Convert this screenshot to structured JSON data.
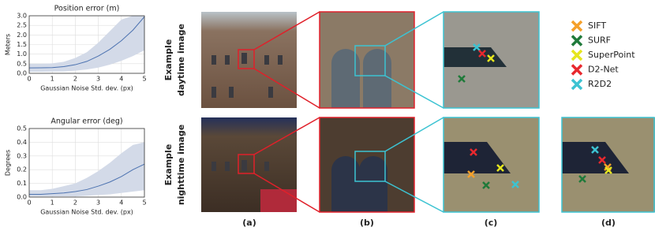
{
  "chart_data": [
    {
      "type": "line",
      "title": "Position error (m)",
      "y_label": "Meters",
      "x_label": "Gaussian Noise Std. dev. (px)",
      "x": [
        0,
        0.5,
        1,
        1.5,
        2,
        2.5,
        3,
        3.5,
        4,
        4.5,
        5
      ],
      "series": [
        {
          "color": "#4c72b0",
          "values": [
            0.28,
            0.29,
            0.3,
            0.35,
            0.45,
            0.62,
            0.9,
            1.25,
            1.7,
            2.25,
            2.95
          ],
          "lower": [
            0.08,
            0.08,
            0.09,
            0.1,
            0.14,
            0.2,
            0.3,
            0.45,
            0.65,
            0.9,
            1.2
          ],
          "upper": [
            0.5,
            0.5,
            0.52,
            0.6,
            0.8,
            1.1,
            1.6,
            2.2,
            2.8,
            3.0,
            3.0
          ]
        }
      ],
      "band_color": "#d3dae8",
      "grid": true,
      "xlim": [
        0,
        5
      ],
      "xticks": [
        0,
        1,
        2,
        3,
        4,
        5
      ],
      "ylim": [
        0,
        3
      ],
      "yticks": [
        {
          "value": 0,
          "label": "0.0"
        },
        {
          "value": 0.5,
          "label": "0.5"
        },
        {
          "value": 1,
          "label": "1.0"
        },
        {
          "value": 1.5,
          "label": "1.5"
        },
        {
          "value": 2,
          "label": "2.0"
        },
        {
          "value": 2.5,
          "label": "2.5"
        },
        {
          "value": 3,
          "label": "3.0"
        }
      ]
    },
    {
      "type": "line",
      "title": "Angular error (deg)",
      "y_label": "Degrees",
      "x_label": "Gaussian Noise Std. dev. (px)",
      "x": [
        0,
        0.5,
        1,
        1.5,
        2,
        2.5,
        3,
        3.5,
        4,
        4.5,
        5
      ],
      "series": [
        {
          "color": "#4c72b0",
          "values": [
            0.02,
            0.02,
            0.025,
            0.03,
            0.04,
            0.055,
            0.08,
            0.11,
            0.15,
            0.2,
            0.24
          ],
          "lower": [
            0.005,
            0.005,
            0.005,
            0.005,
            0.005,
            0.01,
            0.015,
            0.02,
            0.03,
            0.04,
            0.05
          ],
          "upper": [
            0.05,
            0.05,
            0.06,
            0.08,
            0.1,
            0.14,
            0.19,
            0.25,
            0.32,
            0.38,
            0.4
          ]
        }
      ],
      "band_color": "#d3dae8",
      "grid": true,
      "xlim": [
        0,
        5
      ],
      "xticks": [
        0,
        1,
        2,
        3,
        4,
        5
      ],
      "ylim": [
        0,
        0.5
      ],
      "yticks": [
        {
          "value": 0,
          "label": "0.0"
        },
        {
          "value": 0.1,
          "label": "0.1"
        },
        {
          "value": 0.2,
          "label": "0.2"
        },
        {
          "value": 0.3,
          "label": "0.3"
        },
        {
          "value": 0.4,
          "label": "0.4"
        },
        {
          "value": 0.5,
          "label": "0.5"
        }
      ]
    }
  ],
  "figure": {
    "row_labels": [
      [
        "Example",
        "daytime image"
      ],
      [
        "Example",
        "nighttime image"
      ]
    ],
    "panel_labels": [
      "(a)",
      "(b)",
      "(c)",
      "(d)"
    ],
    "legend": [
      {
        "name": "SIFT",
        "color": "#f5a02a"
      },
      {
        "name": "SURF",
        "color": "#1f7a3a"
      },
      {
        "name": "SuperPoint",
        "color": "#e6e61e"
      },
      {
        "name": "D2-Net",
        "color": "#e8282e"
      },
      {
        "name": "R2D2",
        "color": "#3cc3d2"
      }
    ]
  }
}
